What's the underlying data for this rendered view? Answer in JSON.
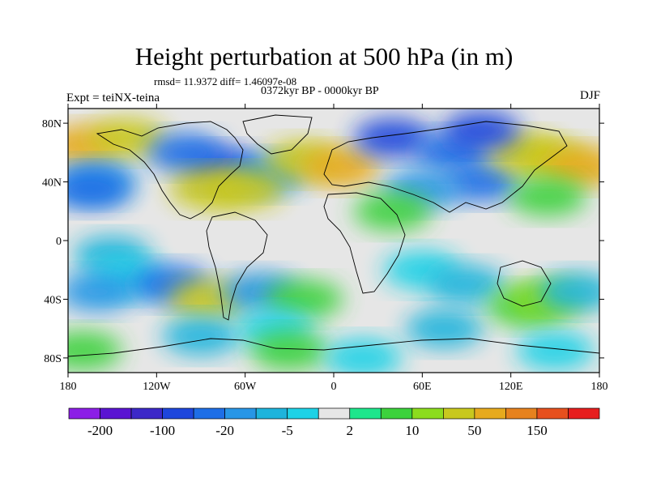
{
  "title": "Height perturbation at 500 hPa (in m)",
  "stats": "rmsd= 11.9372 diff= 1.46097e-08",
  "period": "0372kyr BP - 0000kyr BP",
  "experiment": "Expt = teiNX-teina",
  "season": "DJF",
  "map": {
    "projection": "cylindrical-equidistant",
    "lon_range": [
      -180,
      180
    ],
    "lat_range": [
      -90,
      90
    ],
    "lat_ticks": [
      {
        "value": 80,
        "label": "80N"
      },
      {
        "value": 40,
        "label": "40N"
      },
      {
        "value": 0,
        "label": "0"
      },
      {
        "value": -40,
        "label": "40S"
      },
      {
        "value": -80,
        "label": "80S"
      }
    ],
    "lon_ticks": [
      {
        "value": -180,
        "label": "180"
      },
      {
        "value": -120,
        "label": "120W"
      },
      {
        "value": -60,
        "label": "60W"
      },
      {
        "value": 0,
        "label": "0"
      },
      {
        "value": 60,
        "label": "60E"
      },
      {
        "value": 120,
        "label": "120E"
      },
      {
        "value": 180,
        "label": "180"
      }
    ]
  },
  "colorbar": {
    "colors": [
      "#8c1ee6",
      "#5a14d2",
      "#3c28c8",
      "#1e46dc",
      "#1e6ee6",
      "#2896e6",
      "#1eb4dc",
      "#1ed2e6",
      "#e6e6e6",
      "#1ee68c",
      "#3cd23c",
      "#8cdc1e",
      "#c8c81e",
      "#e6aa1e",
      "#e6821e",
      "#e6501e",
      "#e61e1e"
    ],
    "labels": [
      {
        "after_box": 1,
        "text": "-200"
      },
      {
        "after_box": 3,
        "text": "-100"
      },
      {
        "after_box": 5,
        "text": "-20"
      },
      {
        "after_box": 7,
        "text": "-5"
      },
      {
        "after_box": 9,
        "text": "2"
      },
      {
        "after_box": 11,
        "text": "10"
      },
      {
        "after_box": 13,
        "text": "50"
      },
      {
        "after_box": 15,
        "text": "150"
      }
    ]
  },
  "fields": [
    {
      "lon": -170,
      "lat": 65,
      "level": 13
    },
    {
      "lon": -140,
      "lat": 70,
      "level": 12
    },
    {
      "lon": -75,
      "lat": 50,
      "level": 3
    },
    {
      "lon": -100,
      "lat": 60,
      "level": 4
    },
    {
      "lon": -45,
      "lat": 45,
      "level": 5
    },
    {
      "lon": -85,
      "lat": 35,
      "level": 12
    },
    {
      "lon": -60,
      "lat": 35,
      "level": 12
    },
    {
      "lon": -160,
      "lat": 40,
      "level": 5
    },
    {
      "lon": -165,
      "lat": 35,
      "level": 4
    },
    {
      "lon": -20,
      "lat": 55,
      "level": 12
    },
    {
      "lon": 5,
      "lat": 50,
      "level": 13
    },
    {
      "lon": 40,
      "lat": 70,
      "level": 3
    },
    {
      "lon": 80,
      "lat": 60,
      "level": 4
    },
    {
      "lon": 100,
      "lat": 40,
      "level": 4
    },
    {
      "lon": 60,
      "lat": 35,
      "level": 5
    },
    {
      "lon": 130,
      "lat": 60,
      "level": 12
    },
    {
      "lon": 150,
      "lat": 55,
      "level": 12
    },
    {
      "lon": 170,
      "lat": 50,
      "level": 13
    },
    {
      "lon": 100,
      "lat": 75,
      "level": 3
    },
    {
      "lon": 145,
      "lat": 30,
      "level": 10
    },
    {
      "lon": 40,
      "lat": 20,
      "level": 10
    },
    {
      "lon": -150,
      "lat": -10,
      "level": 6
    },
    {
      "lon": -140,
      "lat": -25,
      "level": 7
    },
    {
      "lon": -160,
      "lat": -35,
      "level": 5
    },
    {
      "lon": -110,
      "lat": -30,
      "level": 4
    },
    {
      "lon": -85,
      "lat": -40,
      "level": 12
    },
    {
      "lon": -50,
      "lat": -35,
      "level": 5
    },
    {
      "lon": -20,
      "lat": -40,
      "level": 10
    },
    {
      "lon": -90,
      "lat": -65,
      "level": 6
    },
    {
      "lon": -40,
      "lat": -60,
      "level": 7
    },
    {
      "lon": 60,
      "lat": -20,
      "level": 7
    },
    {
      "lon": 90,
      "lat": -30,
      "level": 6
    },
    {
      "lon": 75,
      "lat": -60,
      "level": 6
    },
    {
      "lon": 130,
      "lat": -45,
      "level": 10
    },
    {
      "lon": 145,
      "lat": -40,
      "level": 11
    },
    {
      "lon": 165,
      "lat": -35,
      "level": 6
    },
    {
      "lon": 150,
      "lat": -75,
      "level": 7
    },
    {
      "lon": -30,
      "lat": -75,
      "level": 10
    },
    {
      "lon": -170,
      "lat": -75,
      "level": 10
    },
    {
      "lon": 20,
      "lat": -80,
      "level": 7
    }
  ]
}
